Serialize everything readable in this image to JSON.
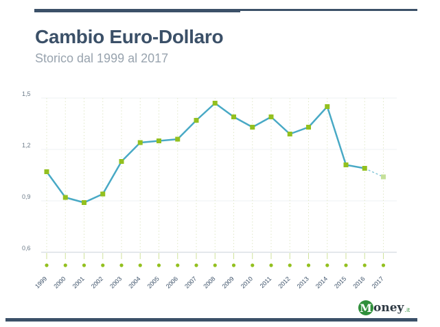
{
  "header": {
    "title": "Cambio Euro-Dollaro",
    "subtitle": "Storico dal 1999 al 2017"
  },
  "logo": {
    "initial": "M",
    "name": "oney",
    "suffix": ".it"
  },
  "colors": {
    "line": "#48a9c5",
    "marker": "#93c01f",
    "marker_forecast": "#c5e09a",
    "navy": "#3b5068",
    "grid": "#dfe7c7"
  },
  "chart_data": {
    "type": "line",
    "title": "Cambio Euro-Dollaro",
    "subtitle": "Storico dal 1999 al 2017",
    "xlabel": "",
    "ylabel": "",
    "categories": [
      "1999",
      "2000",
      "2001",
      "2002",
      "2003",
      "2004",
      "2005",
      "2006",
      "2007",
      "2008",
      "2009",
      "2010",
      "2011",
      "2012",
      "2013",
      "2014",
      "2015",
      "2016",
      "2017"
    ],
    "series": [
      {
        "values": [
          1.07,
          0.92,
          0.89,
          0.94,
          1.13,
          1.24,
          1.25,
          1.26,
          1.37,
          1.47,
          1.39,
          1.33,
          1.39,
          1.29,
          1.33,
          1.45,
          1.11,
          1.09,
          1.04
        ]
      }
    ],
    "forecast_from_index": 17,
    "ylim": [
      0.6,
      1.5
    ],
    "yticks": [
      "0,6",
      "0,9",
      "1,2",
      "1,5"
    ],
    "ytick_values": [
      0.6,
      0.9,
      1.2,
      1.5
    ],
    "grid": true
  }
}
